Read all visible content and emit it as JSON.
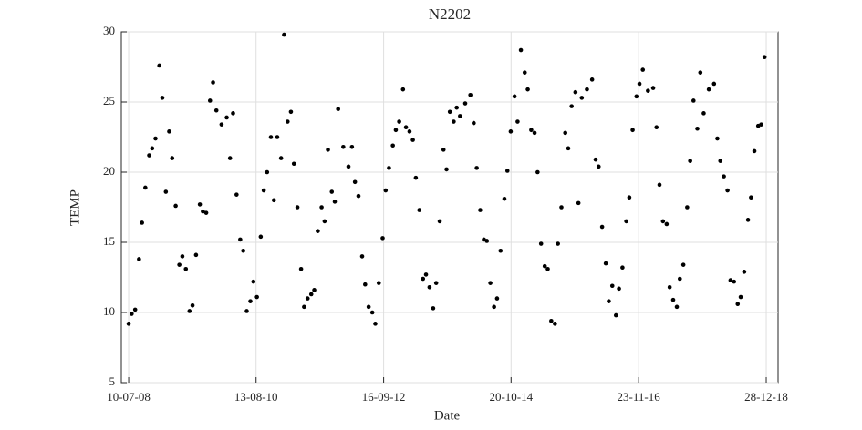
{
  "chart_data": {
    "type": "scatter",
    "title": "N2202",
    "x_label": "Date",
    "y_label": "TEMP",
    "x": [
      "2008-07-10",
      "2008-07-28",
      "2008-08-18",
      "2008-09-10",
      "2008-09-28",
      "2008-10-18",
      "2008-11-10",
      "2008-11-28",
      "2008-12-18",
      "2009-01-10",
      "2009-01-28",
      "2009-02-18",
      "2009-03-10",
      "2009-03-28",
      "2009-04-18",
      "2009-05-10",
      "2009-05-28",
      "2009-06-18",
      "2009-07-10",
      "2009-07-28",
      "2009-08-18",
      "2009-09-10",
      "2009-09-28",
      "2009-10-18",
      "2009-11-10",
      "2009-11-28",
      "2009-12-18",
      "2010-01-18",
      "2010-02-18",
      "2010-03-10",
      "2010-03-28",
      "2010-04-18",
      "2010-05-10",
      "2010-05-28",
      "2010-06-18",
      "2010-07-10",
      "2010-07-28",
      "2010-08-18",
      "2010-09-10",
      "2010-09-28",
      "2010-10-18",
      "2010-11-10",
      "2010-11-28",
      "2010-12-18",
      "2011-01-10",
      "2011-01-28",
      "2011-02-18",
      "2011-03-10",
      "2011-03-28",
      "2011-04-18",
      "2011-05-10",
      "2011-05-28",
      "2011-06-18",
      "2011-07-10",
      "2011-07-28",
      "2011-08-18",
      "2011-09-10",
      "2011-09-28",
      "2011-10-18",
      "2011-11-10",
      "2011-11-28",
      "2011-12-18",
      "2012-01-18",
      "2012-02-18",
      "2012-03-10",
      "2012-03-28",
      "2012-04-18",
      "2012-05-10",
      "2012-05-28",
      "2012-06-18",
      "2012-07-10",
      "2012-07-28",
      "2012-08-18",
      "2012-09-10",
      "2012-09-28",
      "2012-10-18",
      "2012-11-10",
      "2012-11-28",
      "2012-12-18",
      "2013-01-10",
      "2013-01-28",
      "2013-02-18",
      "2013-03-10",
      "2013-03-28",
      "2013-04-18",
      "2013-05-10",
      "2013-05-28",
      "2013-06-18",
      "2013-07-10",
      "2013-07-28",
      "2013-08-18",
      "2013-09-10",
      "2013-09-28",
      "2013-10-18",
      "2013-11-10",
      "2013-11-28",
      "2013-12-18",
      "2014-01-18",
      "2014-02-18",
      "2014-03-10",
      "2014-03-28",
      "2014-04-18",
      "2014-05-10",
      "2014-05-28",
      "2014-06-18",
      "2014-07-10",
      "2014-07-28",
      "2014-08-18",
      "2014-09-10",
      "2014-09-28",
      "2014-10-18",
      "2014-11-10",
      "2014-11-28",
      "2014-12-18",
      "2015-01-10",
      "2015-01-28",
      "2015-02-18",
      "2015-03-10",
      "2015-03-28",
      "2015-04-18",
      "2015-05-10",
      "2015-05-28",
      "2015-06-18",
      "2015-07-10",
      "2015-07-28",
      "2015-08-18",
      "2015-09-10",
      "2015-09-28",
      "2015-10-18",
      "2015-11-10",
      "2015-11-28",
      "2015-12-18",
      "2016-01-18",
      "2016-02-18",
      "2016-03-10",
      "2016-03-28",
      "2016-04-18",
      "2016-05-10",
      "2016-05-28",
      "2016-06-18",
      "2016-07-10",
      "2016-07-28",
      "2016-08-18",
      "2016-09-10",
      "2016-09-28",
      "2016-10-18",
      "2016-11-10",
      "2016-11-28",
      "2016-12-18",
      "2017-01-18",
      "2017-02-18",
      "2017-03-10",
      "2017-03-28",
      "2017-04-18",
      "2017-05-10",
      "2017-05-28",
      "2017-06-18",
      "2017-07-10",
      "2017-07-28",
      "2017-08-18",
      "2017-09-10",
      "2017-09-28",
      "2017-10-18",
      "2017-11-10",
      "2017-11-28",
      "2017-12-18",
      "2018-01-18",
      "2018-02-18",
      "2018-03-10",
      "2018-03-28",
      "2018-04-18",
      "2018-05-10",
      "2018-05-28",
      "2018-06-18",
      "2018-07-10",
      "2018-07-28",
      "2018-08-18",
      "2018-09-10",
      "2018-09-28",
      "2018-10-18",
      "2018-11-10",
      "2018-11-28",
      "2018-12-18"
    ],
    "values": [
      9.2,
      9.9,
      10.2,
      13.8,
      16.4,
      18.9,
      21.2,
      21.7,
      22.4,
      27.6,
      25.3,
      18.6,
      22.9,
      21.0,
      17.6,
      13.4,
      14.0,
      13.1,
      10.1,
      10.5,
      14.1,
      17.7,
      17.2,
      17.1,
      25.1,
      26.4,
      24.4,
      23.4,
      23.9,
      21.0,
      24.2,
      18.4,
      15.2,
      14.4,
      10.1,
      10.8,
      12.2,
      11.1,
      15.4,
      18.7,
      20.0,
      22.5,
      18.0,
      22.5,
      21.0,
      29.8,
      23.6,
      24.3,
      20.6,
      17.5,
      13.1,
      10.4,
      11.0,
      11.3,
      11.6,
      15.8,
      17.5,
      16.5,
      21.6,
      18.6,
      17.9,
      24.5,
      21.8,
      20.4,
      21.8,
      19.3,
      18.3,
      14.0,
      12.0,
      10.4,
      10.0,
      9.2,
      12.1,
      15.3,
      18.7,
      20.3,
      21.9,
      23.0,
      23.6,
      25.9,
      23.2,
      22.9,
      22.3,
      19.6,
      17.3,
      12.4,
      12.7,
      11.8,
      10.3,
      12.1,
      16.5,
      21.6,
      20.2,
      24.3,
      23.6,
      24.6,
      24.0,
      24.9,
      25.5,
      23.5,
      20.3,
      17.3,
      15.2,
      15.1,
      12.1,
      10.4,
      11.0,
      14.4,
      18.1,
      20.1,
      22.9,
      25.4,
      23.6,
      28.7,
      27.1,
      25.9,
      23.0,
      22.8,
      20.0,
      14.9,
      13.3,
      13.1,
      9.4,
      9.2,
      14.9,
      17.5,
      22.8,
      21.7,
      24.7,
      25.7,
      17.8,
      25.3,
      25.9,
      26.6,
      20.9,
      20.4,
      16.1,
      13.5,
      10.8,
      11.9,
      9.8,
      11.7,
      13.2,
      16.5,
      18.2,
      23.0,
      25.4,
      26.3,
      27.3,
      25.8,
      26.0,
      23.2,
      19.1,
      16.5,
      16.3,
      11.8,
      10.9,
      10.4,
      12.4,
      13.4,
      17.5,
      20.8,
      25.1,
      23.1,
      27.1,
      24.2,
      25.9,
      26.3,
      22.4,
      20.8,
      19.7,
      18.7,
      12.3,
      12.2,
      10.6,
      11.1,
      12.9,
      16.6,
      18.2,
      21.5,
      23.3,
      23.4,
      28.2
    ],
    "color": "#000000",
    "xlim": [
      "2008-05-27",
      "2019-03-09"
    ],
    "xticks": [
      {
        "value": "2008-07-10",
        "label": "10-07-08"
      },
      {
        "value": "2010-08-13",
        "label": "13-08-10"
      },
      {
        "value": "2012-09-16",
        "label": "16-09-12"
      },
      {
        "value": "2014-10-20",
        "label": "20-10-14"
      },
      {
        "value": "2016-11-23",
        "label": "23-11-16"
      },
      {
        "value": "2018-12-28",
        "label": "28-12-18"
      }
    ],
    "ylim": [
      5,
      30
    ],
    "yticks": [
      5,
      10,
      15,
      20,
      25,
      30
    ],
    "grid": true
  }
}
